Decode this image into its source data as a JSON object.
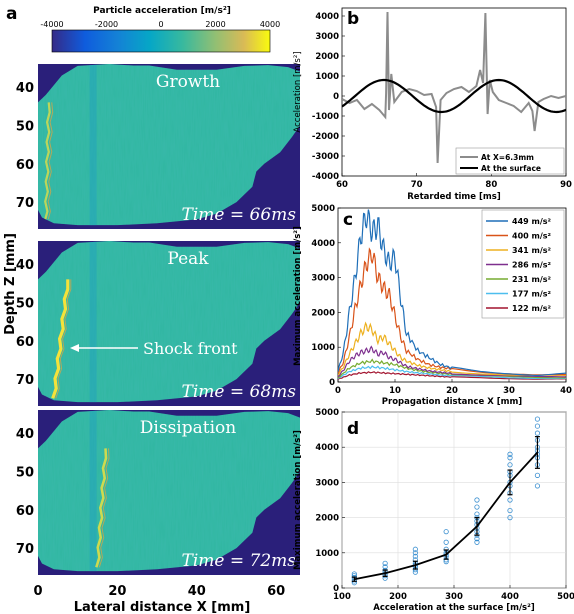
{
  "panel_a": {
    "letter": "a",
    "colorbar_label": "Particle acceleration [m/s²]",
    "colorbar_ticks": [
      {
        "value": -4000,
        "label": "-4000"
      },
      {
        "value": -2000,
        "label": "-2000"
      },
      {
        "value": 0,
        "label": "0"
      },
      {
        "value": 2000,
        "label": "2000"
      },
      {
        "value": 4000,
        "label": "4000"
      }
    ],
    "colorbar_range": [
      -4000,
      4000
    ],
    "ylabel": "Depth Z [mm]",
    "xlabel": "Lateral distance X [mm]",
    "x_ticks": [
      {
        "value": 0,
        "label": "0"
      },
      {
        "value": 20,
        "label": "20"
      },
      {
        "value": 40,
        "label": "40"
      },
      {
        "value": 60,
        "label": "60"
      }
    ],
    "xlim": [
      0,
      66
    ],
    "y_ticks": [
      {
        "value": 40,
        "label": "40"
      },
      {
        "value": 50,
        "label": "50"
      },
      {
        "value": 60,
        "label": "60"
      },
      {
        "value": 70,
        "label": "70"
      }
    ],
    "ylim": [
      34,
      77
    ],
    "background_color": "#2a1f7a",
    "field_color": "#2fb7a0",
    "frames": [
      {
        "title": "Growth",
        "time_label": "Time = 66ms",
        "front_x": [
          2,
          2.7
        ],
        "front_strength": "weak"
      },
      {
        "title": "Peak",
        "time_label": "Time = 68ms",
        "front_x": [
          4,
          7.5
        ],
        "front_strength": "strong",
        "annotation": "Shock front"
      },
      {
        "title": "Dissipation",
        "time_label": "Time = 72ms",
        "front_x": [
          15,
          17
        ],
        "front_strength": "medium"
      }
    ]
  },
  "chart_data": [
    {
      "panel": "b",
      "type": "line",
      "ylabel": "Acceleration [m/s²]",
      "xlabel": "Retarded time [ms]",
      "xlim": [
        60,
        90
      ],
      "ylim": [
        -4000,
        4400
      ],
      "x_ticks": [
        {
          "value": 60,
          "label": "60"
        },
        {
          "value": 70,
          "label": "70"
        },
        {
          "value": 80,
          "label": "80"
        },
        {
          "value": 90,
          "label": "90"
        }
      ],
      "y_ticks": [
        {
          "value": 4000,
          "label": "4000"
        },
        {
          "value": 3000,
          "label": "3000"
        },
        {
          "value": 2000,
          "label": "2000"
        },
        {
          "value": 1000,
          "label": "1000"
        },
        {
          "value": 0,
          "label": "0"
        },
        {
          "value": -1000,
          "label": "-1000"
        },
        {
          "value": -2000,
          "label": "-2000"
        },
        {
          "value": -3000,
          "label": "-3000"
        },
        {
          "value": -4000,
          "label": "-4000"
        }
      ],
      "legend_position": "bottom-right",
      "series": [
        {
          "name": "At X=6.3mm",
          "color": "#8c8c8c",
          "x": [
            60,
            61,
            62,
            63,
            64,
            65,
            65.8,
            65.9,
            66.1,
            66.3,
            66.6,
            67,
            68,
            69,
            70,
            71,
            72,
            72.6,
            72.8,
            73.2,
            74,
            75,
            76,
            77,
            78,
            78.5,
            78.9,
            79.2,
            79.5,
            79.8,
            80.2,
            81,
            82,
            83,
            84,
            85,
            85.5,
            85.8,
            86.3,
            87,
            88,
            89,
            90
          ],
          "y": [
            -150,
            -350,
            -200,
            -650,
            -400,
            -700,
            -1050,
            150,
            4200,
            -700,
            1100,
            -300,
            200,
            350,
            250,
            50,
            100,
            -550,
            -3350,
            -200,
            150,
            350,
            450,
            200,
            500,
            1300,
            650,
            4150,
            -900,
            800,
            200,
            -200,
            -350,
            -500,
            -800,
            -350,
            -750,
            -1750,
            -300,
            -150,
            0,
            -100,
            0
          ]
        },
        {
          "name": "At the surface",
          "color": "#000000",
          "period": 15.4,
          "amplitude": 800,
          "peak_at": 81
        }
      ]
    },
    {
      "panel": "c",
      "type": "line",
      "ylabel": "Maximum acceleration [m/s²]",
      "xlabel": "Propagation distance X [mm]",
      "xlim": [
        0,
        40
      ],
      "ylim": [
        0,
        5000
      ],
      "x_ticks": [
        {
          "value": 0,
          "label": "0"
        },
        {
          "value": 10,
          "label": "10"
        },
        {
          "value": 20,
          "label": "20"
        },
        {
          "value": 30,
          "label": "30"
        },
        {
          "value": 40,
          "label": "40"
        }
      ],
      "y_ticks": [
        {
          "value": 0,
          "label": "0"
        },
        {
          "value": 1000,
          "label": "1000"
        },
        {
          "value": 2000,
          "label": "2000"
        },
        {
          "value": 3000,
          "label": "3000"
        },
        {
          "value": 4000,
          "label": "4000"
        },
        {
          "value": 5000,
          "label": "5000"
        }
      ],
      "legend_position": "top-right",
      "series": [
        {
          "name": "449 m/s²",
          "color": "#1f6fb8",
          "x": [
            0,
            1,
            2,
            3,
            4,
            5,
            6,
            7,
            8,
            9,
            10,
            11,
            12,
            14,
            16,
            18,
            20,
            25,
            30,
            35,
            40
          ],
          "y": [
            300,
            900,
            2000,
            3000,
            4200,
            4800,
            4300,
            4500,
            3800,
            3400,
            3600,
            2400,
            1400,
            900,
            700,
            500,
            400,
            300,
            250,
            200,
            250
          ]
        },
        {
          "name": "400 m/s²",
          "color": "#d95319",
          "x": [
            0,
            1,
            2,
            3,
            4,
            5,
            6,
            7,
            8,
            9,
            10,
            11,
            12,
            14,
            16,
            18,
            20,
            25,
            30,
            35,
            40
          ],
          "y": [
            250,
            600,
            1300,
            2100,
            2800,
            3400,
            3700,
            3000,
            2700,
            2500,
            1900,
            1300,
            900,
            650,
            500,
            420,
            380,
            300,
            250,
            200,
            200
          ]
        },
        {
          "name": "341 m/s²",
          "color": "#edb120",
          "x": [
            0,
            1,
            2,
            3,
            4,
            5,
            6,
            7,
            8,
            9,
            10,
            11,
            12,
            14,
            16,
            18,
            20,
            25,
            30,
            35,
            40
          ],
          "y": [
            200,
            450,
            800,
            1100,
            1400,
            1600,
            1500,
            1200,
            1300,
            1100,
            900,
            700,
            600,
            480,
            400,
            350,
            300,
            250,
            200,
            180,
            180
          ]
        },
        {
          "name": "286 m/s²",
          "color": "#7e2f8e",
          "x": [
            0,
            1,
            2,
            3,
            4,
            5,
            6,
            7,
            8,
            9,
            10,
            11,
            12,
            14,
            16,
            18,
            20,
            25,
            30,
            35,
            40
          ],
          "y": [
            150,
            350,
            600,
            750,
            850,
            900,
            950,
            800,
            850,
            700,
            650,
            550,
            450,
            380,
            320,
            280,
            250,
            200,
            170,
            150,
            150
          ]
        },
        {
          "name": "231 m/s²",
          "color": "#77ac30",
          "x": [
            0,
            2,
            4,
            6,
            8,
            10,
            12,
            14,
            16,
            18,
            20,
            25,
            30,
            35,
            40
          ],
          "y": [
            120,
            400,
            550,
            600,
            550,
            500,
            400,
            330,
            280,
            250,
            220,
            180,
            150,
            130,
            130
          ]
        },
        {
          "name": "177 m/s²",
          "color": "#4dbeee",
          "x": [
            0,
            2,
            4,
            6,
            8,
            10,
            12,
            14,
            16,
            18,
            20,
            25,
            30,
            35,
            40
          ],
          "y": [
            100,
            300,
            400,
            430,
            400,
            350,
            300,
            260,
            230,
            200,
            180,
            150,
            120,
            110,
            110
          ]
        },
        {
          "name": "122 m/s²",
          "color": "#a2142f",
          "x": [
            0,
            2,
            4,
            6,
            8,
            10,
            12,
            14,
            16,
            18,
            20,
            25,
            30,
            35,
            40
          ],
          "y": [
            80,
            200,
            260,
            280,
            260,
            240,
            220,
            200,
            180,
            160,
            140,
            120,
            100,
            90,
            90
          ]
        }
      ]
    },
    {
      "panel": "d",
      "type": "scatter",
      "ylabel": "Maximum acceleration [m/s²]",
      "xlabel": "Acceleration at the surface [m/s²]",
      "xlim": [
        100,
        500
      ],
      "ylim": [
        0,
        5000
      ],
      "x_ticks": [
        {
          "value": 100,
          "label": "100"
        },
        {
          "value": 200,
          "label": "200"
        },
        {
          "value": 300,
          "label": "300"
        },
        {
          "value": 400,
          "label": "400"
        },
        {
          "value": 500,
          "label": "500"
        }
      ],
      "y_ticks": [
        {
          "value": 0,
          "label": "0"
        },
        {
          "value": 1000,
          "label": "1000"
        },
        {
          "value": 2000,
          "label": "2000"
        },
        {
          "value": 3000,
          "label": "3000"
        },
        {
          "value": 4000,
          "label": "4000"
        },
        {
          "value": 5000,
          "label": "5000"
        }
      ],
      "grid": true,
      "scatter_color": "#3a8fd0",
      "mean_color": "#000000",
      "mean_line": {
        "x": [
          122,
          177,
          231,
          286,
          341,
          400,
          449
        ],
        "y": [
          250,
          420,
          650,
          950,
          1750,
          3000,
          3850
        ],
        "err": [
          60,
          90,
          110,
          130,
          250,
          350,
          450
        ]
      },
      "points": [
        {
          "x": 122,
          "y": [
            150,
            200,
            250,
            300,
            350,
            400
          ]
        },
        {
          "x": 177,
          "y": [
            280,
            350,
            400,
            450,
            500,
            600,
            700
          ]
        },
        {
          "x": 231,
          "y": [
            450,
            520,
            600,
            650,
            700,
            800,
            900,
            1000,
            1100
          ]
        },
        {
          "x": 286,
          "y": [
            750,
            800,
            900,
            950,
            1000,
            1100,
            1300,
            1600
          ]
        },
        {
          "x": 341,
          "y": [
            1300,
            1400,
            1500,
            1600,
            1700,
            1800,
            1900,
            2000,
            2100,
            2300,
            2500
          ]
        },
        {
          "x": 400,
          "y": [
            2000,
            2200,
            2500,
            2700,
            2900,
            3000,
            3200,
            3300,
            3500,
            3700,
            3800
          ]
        },
        {
          "x": 449,
          "y": [
            2900,
            3200,
            3500,
            3700,
            3800,
            3900,
            4000,
            4200,
            4400,
            4600,
            4800
          ]
        }
      ]
    }
  ]
}
